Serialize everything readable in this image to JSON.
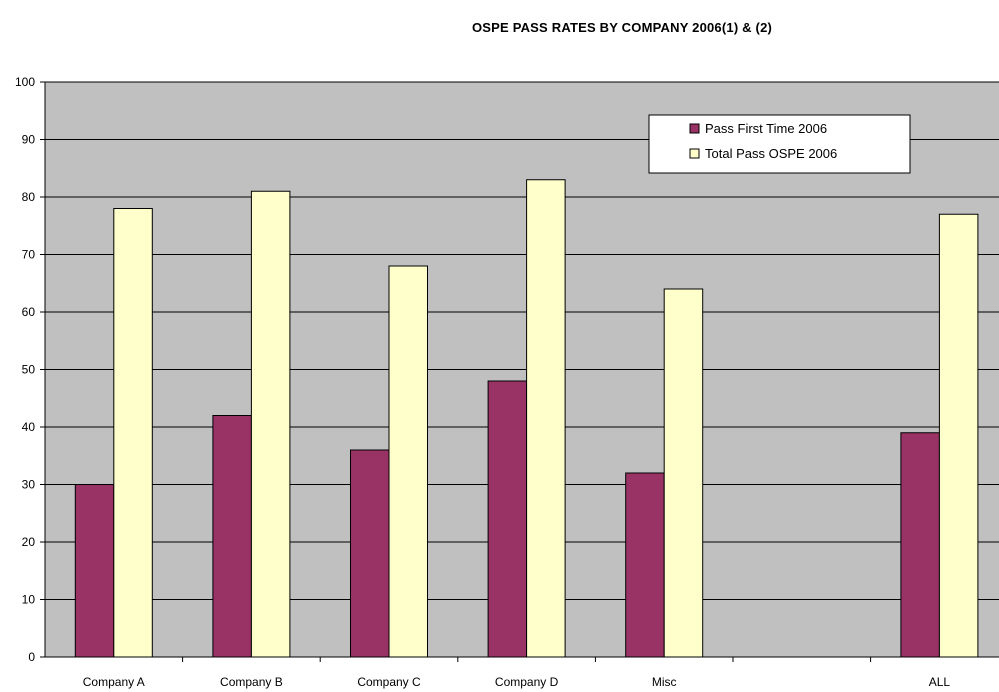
{
  "chart_data": {
    "type": "bar",
    "title": "OSPE PASS RATES BY COMPANY 2006(1) & (2)",
    "xlabel": "",
    "ylabel": "",
    "ylim": [
      0,
      100
    ],
    "yticks": [
      0,
      10,
      20,
      30,
      40,
      50,
      60,
      70,
      80,
      90,
      100
    ],
    "categories": [
      "Company A",
      "Company B",
      "Company C",
      "Company D",
      "Misc",
      "",
      "ALL"
    ],
    "series": [
      {
        "name": "Pass First Time 2006",
        "color": "#993366",
        "values": [
          30,
          42,
          36,
          48,
          32,
          null,
          39
        ]
      },
      {
        "name": "Total Pass OSPE 2006",
        "color": "#FFFFCC",
        "values": [
          78,
          81,
          68,
          83,
          64,
          null,
          77
        ]
      }
    ],
    "grid": true,
    "plot_background": "#C0C0C0",
    "legend_position": "top-right"
  }
}
